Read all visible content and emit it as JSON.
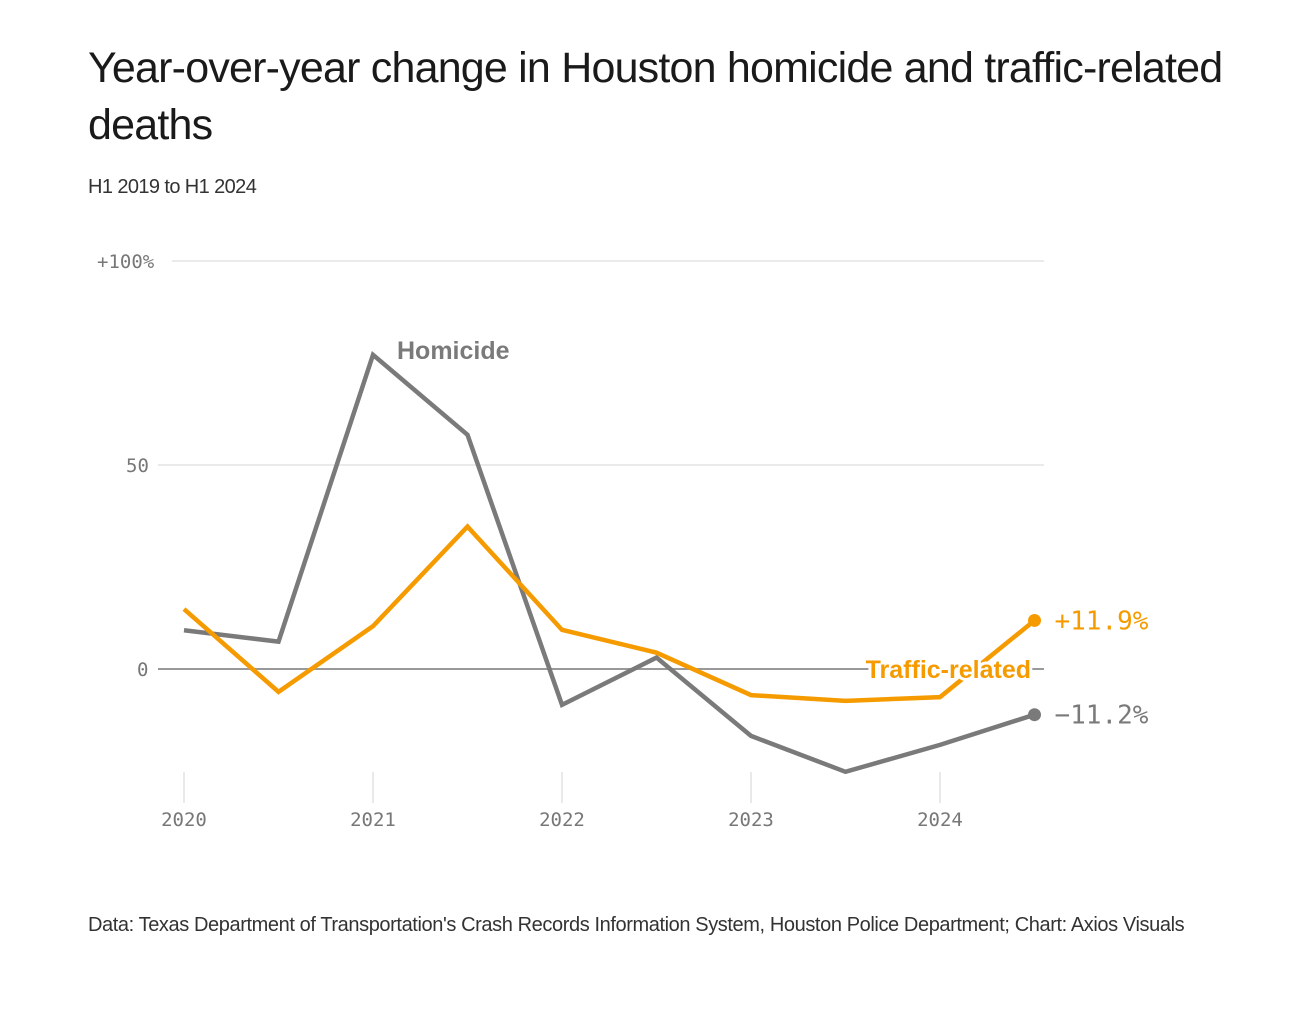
{
  "header": {
    "title": "Year-over-year change in Houston homicide and traffic-related deaths",
    "subtitle": "H1 2019 to H1 2024"
  },
  "footer": {
    "source": "Data: Texas Department of Transportation's Crash Records Information System, Houston Police Department; Chart: Axios Visuals"
  },
  "colors": {
    "homicide": "#7a7a7a",
    "traffic": "#f59b00",
    "grid": "#dddddd",
    "baseline": "#999999"
  },
  "chart_data": {
    "type": "line",
    "title": "Year-over-year change in Houston homicide and traffic-related deaths",
    "subtitle": "H1 2019 to H1 2024",
    "xlabel": "",
    "ylabel": "",
    "x": [
      2020.0,
      2020.5,
      2021.0,
      2021.5,
      2022.0,
      2022.5,
      2023.0,
      2023.5,
      2024.0,
      2024.5
    ],
    "xlim": [
      2020.0,
      2024.55
    ],
    "ylim": [
      -30,
      100
    ],
    "x_ticks": [
      {
        "value": 2020,
        "label": "2020"
      },
      {
        "value": 2021,
        "label": "2021"
      },
      {
        "value": 2022,
        "label": "2022"
      },
      {
        "value": 2023,
        "label": "2023"
      },
      {
        "value": 2024,
        "label": "2024"
      }
    ],
    "y_ticks": [
      {
        "value": 100,
        "label": "+100%"
      },
      {
        "value": 50,
        "label": "50"
      },
      {
        "value": 0,
        "label": "0"
      }
    ],
    "grid": true,
    "series": [
      {
        "name": "Homicide",
        "label": "Homicide",
        "color_key": "homicide",
        "values": [
          9.5,
          6.7,
          77.0,
          57.4,
          -8.8,
          2.8,
          -16.4,
          -25.2,
          -18.6,
          -11.2
        ],
        "end_label": "−11.2%"
      },
      {
        "name": "Traffic-related",
        "label": "Traffic-related",
        "color_key": "traffic",
        "values": [
          14.7,
          -5.6,
          10.5,
          34.9,
          9.6,
          4.0,
          -6.4,
          -7.8,
          -6.9,
          11.9
        ],
        "end_label": "+11.9%"
      }
    ],
    "legend": "inline"
  }
}
